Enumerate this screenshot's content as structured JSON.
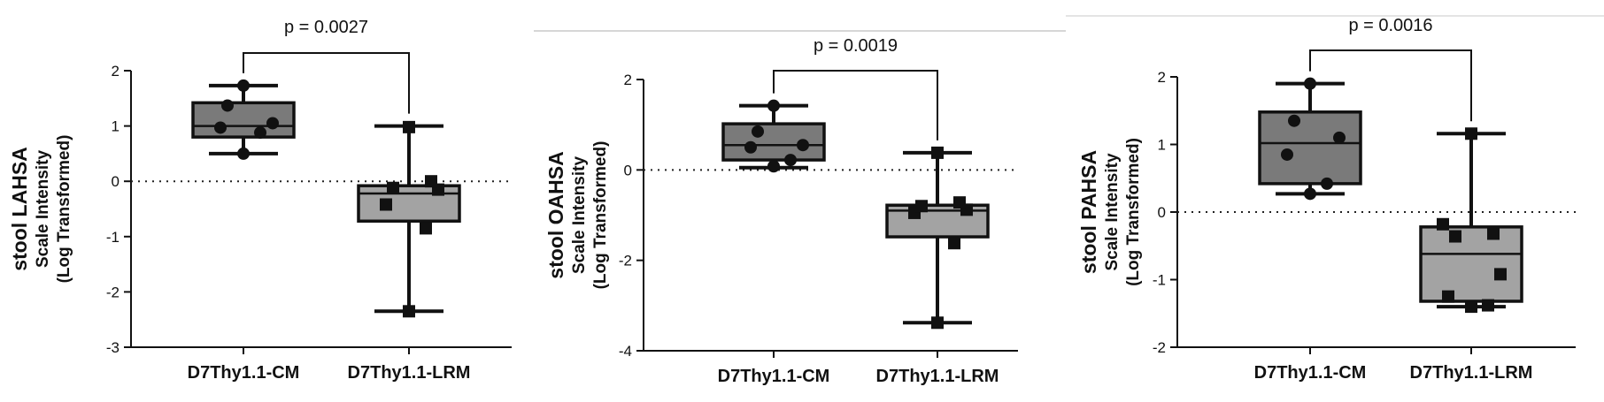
{
  "chart_data": [
    {
      "type": "boxplot",
      "ylabel_main": "stool LAHSA",
      "ylabel_sub": [
        "Scale Intensity",
        "(Log Transformed)"
      ],
      "ylim": [
        -3,
        2
      ],
      "yticks": [
        -3,
        -2,
        -1,
        0,
        1,
        2
      ],
      "reference_line": 0,
      "categories": [
        "D7Thy1.1-CM",
        "D7Thy1.1-LRM"
      ],
      "annotation": "p = 0.0027",
      "colors": {
        "box1": "#7a7a7a",
        "box2": "#a3a3a3"
      },
      "groups": [
        {
          "name": "D7Thy1.1-CM",
          "marker": "circle",
          "min": 0.5,
          "q1": 0.8,
          "median": 1.0,
          "q3": 1.42,
          "max": 1.73,
          "points": [
            0.5,
            0.88,
            0.97,
            1.05,
            1.37,
            1.73
          ]
        },
        {
          "name": "D7Thy1.1-LRM",
          "marker": "square",
          "min": -2.35,
          "q1": -0.72,
          "median": -0.22,
          "q3": -0.08,
          "max": 1.0,
          "points": [
            -2.35,
            -0.85,
            -0.42,
            -0.15,
            -0.12,
            0.0,
            0.98
          ]
        }
      ]
    },
    {
      "type": "boxplot",
      "ylabel_main": "stool OAHSA",
      "ylabel_sub": [
        "Scale Intensity",
        "(Log Transformed)"
      ],
      "ylim": [
        -4,
        2
      ],
      "yticks": [
        -4,
        -2,
        0,
        2
      ],
      "reference_line": 0,
      "categories": [
        "D7Thy1.1-CM",
        "D7Thy1.1-LRM"
      ],
      "annotation": "p = 0.0019",
      "colors": {
        "box1": "#7a7a7a",
        "box2": "#a3a3a3"
      },
      "groups": [
        {
          "name": "D7Thy1.1-CM",
          "marker": "circle",
          "min": 0.05,
          "q1": 0.22,
          "median": 0.55,
          "q3": 1.02,
          "max": 1.42,
          "points": [
            0.08,
            0.22,
            0.5,
            0.55,
            0.85,
            1.42
          ]
        },
        {
          "name": "D7Thy1.1-LRM",
          "marker": "square",
          "min": -3.38,
          "q1": -1.48,
          "median": -0.9,
          "q3": -0.78,
          "max": 0.38,
          "points": [
            -3.38,
            -1.62,
            -0.95,
            -0.88,
            -0.8,
            -0.72,
            0.38
          ]
        }
      ]
    },
    {
      "type": "boxplot",
      "ylabel_main": "stool PAHSA",
      "ylabel_sub": [
        "Scale Intensity",
        "(Log Transformed)"
      ],
      "ylim": [
        -2,
        2
      ],
      "yticks": [
        -2,
        -1,
        0,
        1,
        2
      ],
      "reference_line": 0,
      "categories": [
        "D7Thy1.1-CM",
        "D7Thy1.1-LRM"
      ],
      "annotation": "p = 0.0016",
      "colors": {
        "box1": "#7a7a7a",
        "box2": "#a3a3a3"
      },
      "groups": [
        {
          "name": "D7Thy1.1-CM",
          "marker": "circle",
          "min": 0.27,
          "q1": 0.42,
          "median": 1.02,
          "q3": 1.48,
          "max": 1.9,
          "points": [
            0.27,
            0.42,
            0.85,
            1.1,
            1.35,
            1.9
          ]
        },
        {
          "name": "D7Thy1.1-LRM",
          "marker": "square",
          "min": -1.4,
          "q1": -1.32,
          "median": -0.62,
          "q3": -0.22,
          "max": 1.16,
          "points": [
            -1.4,
            -1.38,
            -1.25,
            -0.92,
            -0.36,
            -0.32,
            -0.18,
            1.16
          ]
        }
      ]
    }
  ]
}
